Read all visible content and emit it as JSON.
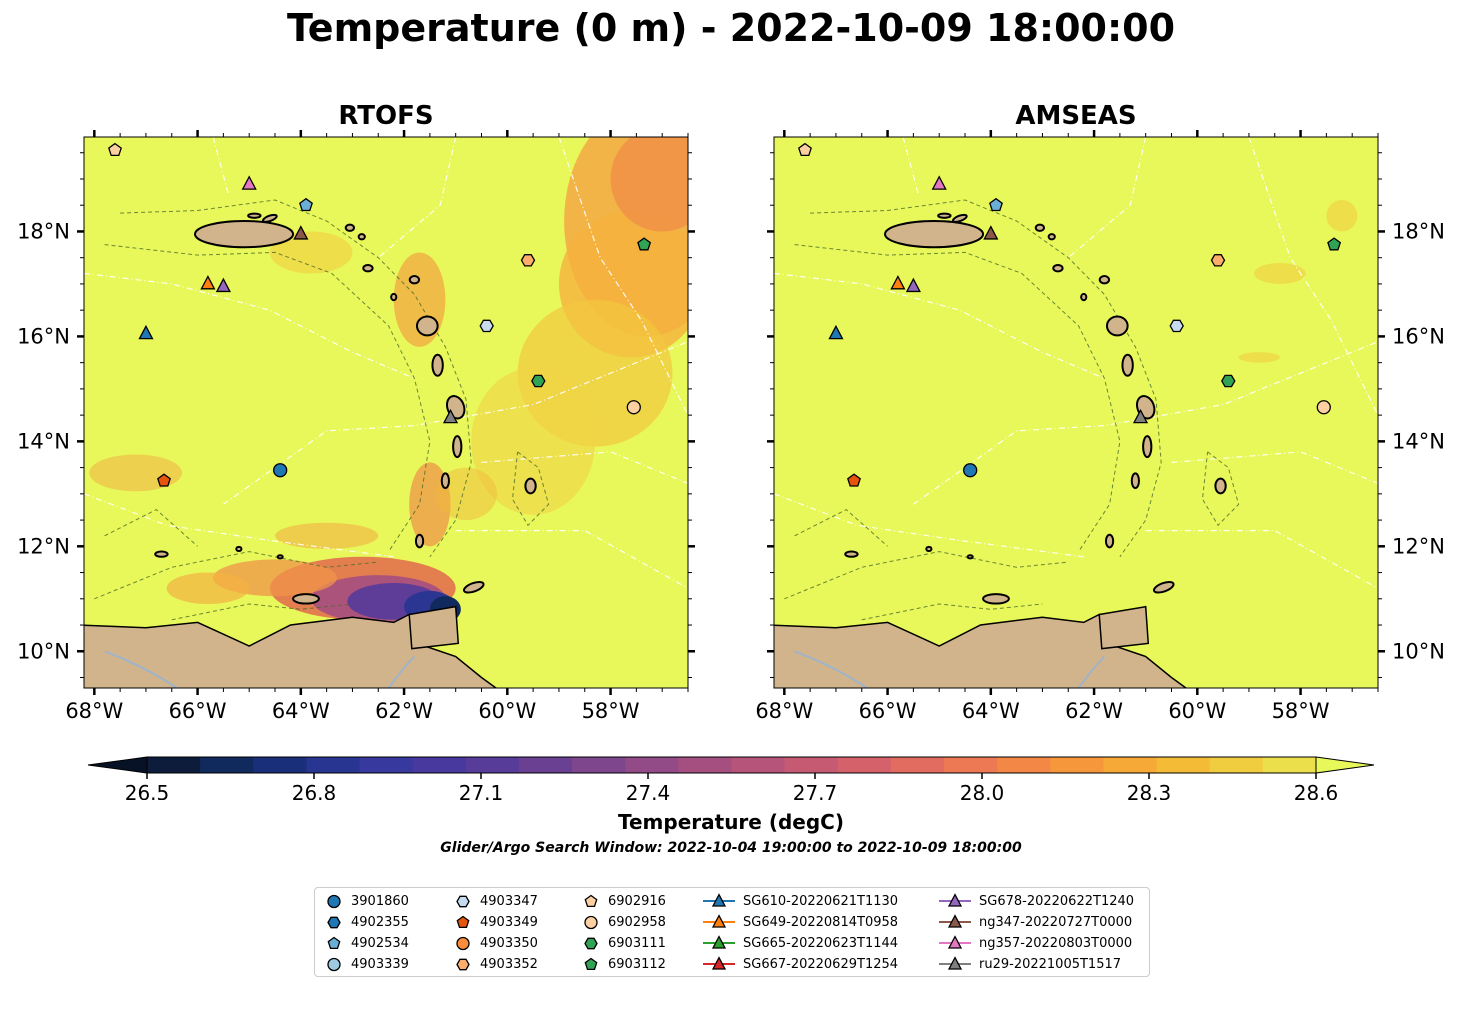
{
  "title": "Temperature (0 m) - 2022-10-09 18:00:00",
  "panels": [
    {
      "title": "RTOFS"
    },
    {
      "title": "AMSEAS"
    }
  ],
  "axes": {
    "x_ticks": [
      "68°W",
      "66°W",
      "64°W",
      "62°W",
      "60°W",
      "58°W"
    ],
    "y_ticks": [
      "18°N",
      "16°N",
      "14°N",
      "12°N",
      "10°N"
    ],
    "lon_range": [
      -68.2,
      -56.5
    ],
    "lat_range": [
      9.3,
      19.8
    ]
  },
  "colorbar": {
    "label": "Temperature (degC)",
    "min": 26.5,
    "max": 28.6,
    "extend": "both",
    "ticks": [
      "26.5",
      "26.8",
      "27.1",
      "27.4",
      "27.7",
      "28.0",
      "28.3",
      "28.6"
    ],
    "colors": [
      "#0c1c3a",
      "#102a5e",
      "#1a2f7a",
      "#283591",
      "#37399e",
      "#47399e",
      "#583c99",
      "#6a4192",
      "#7e468c",
      "#924b86",
      "#a54f80",
      "#b7547a",
      "#c75a73",
      "#d5626b",
      "#e26c60",
      "#ec7953",
      "#f28746",
      "#f6973b",
      "#f6a936",
      "#f4bb37",
      "#f0cd3f",
      "#ecdf4c"
    ]
  },
  "search_window": "Glider/Argo Search Window: 2022-10-04 19:00:00 to 2022-10-09 18:00:00",
  "legend": [
    {
      "label": "3901860",
      "marker": "circle",
      "color": "#1f77b4"
    },
    {
      "label": "4902355",
      "marker": "hexagon",
      "color": "#1f77b4"
    },
    {
      "label": "4902534",
      "marker": "pentagon",
      "color": "#6baed6"
    },
    {
      "label": "4903339",
      "marker": "circle",
      "color": "#9ecae1"
    },
    {
      "label": "4903347",
      "marker": "hexagon",
      "color": "#c6dbef"
    },
    {
      "label": "4903349",
      "marker": "pentagon",
      "color": "#e6550d"
    },
    {
      "label": "4903350",
      "marker": "circle",
      "color": "#fd8d3c"
    },
    {
      "label": "4903352",
      "marker": "hexagon",
      "color": "#fdae6b"
    },
    {
      "label": "6902916",
      "marker": "pentagon",
      "color": "#fdd0a2"
    },
    {
      "label": "6902958",
      "marker": "circle",
      "color": "#fdd0a2"
    },
    {
      "label": "6903111",
      "marker": "hexagon",
      "color": "#31a354"
    },
    {
      "label": "6903112",
      "marker": "pentagon",
      "color": "#31a354"
    },
    {
      "label": "SG610-20220621T1130",
      "marker": "triangle",
      "color": "#1f77b4"
    },
    {
      "label": "SG649-20220814T0958",
      "marker": "triangle",
      "color": "#ff7f0e"
    },
    {
      "label": "SG665-20220623T1144",
      "marker": "triangle",
      "color": "#2ca02c"
    },
    {
      "label": "SG667-20220629T1254",
      "marker": "triangle",
      "color": "#d62728"
    },
    {
      "label": "SG678-20220622T1240",
      "marker": "triangle",
      "color": "#9467bd"
    },
    {
      "label": "ng347-20220727T0000",
      "marker": "triangle",
      "color": "#8c564b"
    },
    {
      "label": "ng357-20220803T0000",
      "marker": "triangle",
      "color": "#e377c2"
    },
    {
      "label": "ru29-20221005T1517",
      "marker": "triangle",
      "color": "#7f7f7f"
    }
  ],
  "observations": [
    {
      "id": "6902916",
      "lon": -67.6,
      "lat": 19.55
    },
    {
      "id": "ng357-20220803T0000",
      "lon": -65.0,
      "lat": 18.9
    },
    {
      "id": "4902534",
      "lon": -63.9,
      "lat": 18.5
    },
    {
      "id": "ng347-20220727T0000",
      "lon": -64.0,
      "lat": 17.95
    },
    {
      "id": "6903112",
      "lon": -57.35,
      "lat": 17.75
    },
    {
      "id": "4903352",
      "lon": -59.6,
      "lat": 17.45
    },
    {
      "id": "SG649-20220814T0958",
      "lon": -65.8,
      "lat": 17.0
    },
    {
      "id": "SG678-20220622T1240",
      "lon": -65.5,
      "lat": 16.95
    },
    {
      "id": "4903347",
      "lon": -60.4,
      "lat": 16.2
    },
    {
      "id": "SG610-20220621T1130",
      "lon": -67.0,
      "lat": 16.05
    },
    {
      "id": "6903111",
      "lon": -59.4,
      "lat": 15.15
    },
    {
      "id": "6902958",
      "lon": -57.55,
      "lat": 14.65
    },
    {
      "id": "ru29-20221005T1517",
      "lon": -61.1,
      "lat": 14.45
    },
    {
      "id": "3901860",
      "lon": -64.4,
      "lat": 13.45
    },
    {
      "id": "4903349",
      "lon": -66.65,
      "lat": 13.25
    }
  ]
}
